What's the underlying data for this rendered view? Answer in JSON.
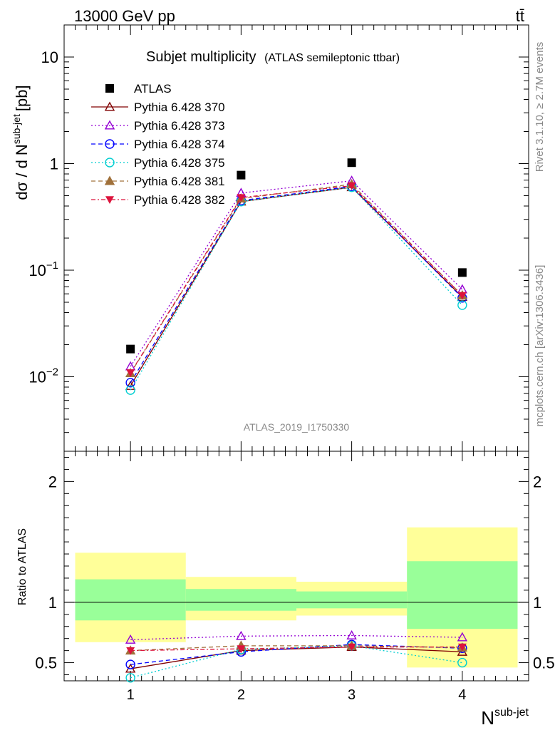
{
  "header": {
    "left": "13000 GeV pp",
    "right": "tt̄"
  },
  "side_labels": {
    "rivet": "Rivet 3.1.10, ≥ 2.7M events",
    "mcplots": "mcplots.cern.ch [arXiv:1306.3436]"
  },
  "chart_data": [
    {
      "type": "line",
      "title": "Subjet multiplicity",
      "subtitle": "(ATLAS semileptonic ttbar)",
      "analysis_tag": "ATLAS_2019_I1750330",
      "ylabel_main": "dσ / d N",
      "ylabel_sup": "sub-jet",
      "ylabel_unit": "[pb]",
      "yscale": "log",
      "ylim": [
        0.002,
        20
      ],
      "xlim": [
        0.4,
        4.6
      ],
      "y_ticks": [
        {
          "value": 10,
          "label": "10"
        },
        {
          "value": 1,
          "label": "1"
        },
        {
          "value": 0.1,
          "base": "10",
          "exp": "−1"
        },
        {
          "value": 0.01,
          "base": "10",
          "exp": "−2"
        }
      ],
      "legend_position": "top-left",
      "x": [
        1,
        2,
        3,
        4
      ],
      "series": [
        {
          "name": "ATLAS",
          "values": [
            0.0182,
            0.78,
            1.02,
            0.095
          ],
          "color": "#000000",
          "marker": "square"
        },
        {
          "name": "Pythia 6.428 370",
          "values": [
            0.0082,
            0.44,
            0.6,
            0.056
          ],
          "color": "#800000",
          "marker": "triangle-open",
          "dash": "solid"
        },
        {
          "name": "Pythia 6.428 373",
          "values": [
            0.0125,
            0.53,
            0.69,
            0.066
          ],
          "color": "#9400d3",
          "marker": "triangle-open",
          "dash": "dotted"
        },
        {
          "name": "Pythia 6.428 374",
          "values": [
            0.0088,
            0.45,
            0.61,
            0.055
          ],
          "color": "#0000ff",
          "marker": "circle-open",
          "dash": "dashed"
        },
        {
          "name": "Pythia 6.428 375",
          "values": [
            0.0075,
            0.44,
            0.6,
            0.047
          ],
          "color": "#00ced1",
          "marker": "circle-open",
          "dash": "dotted"
        },
        {
          "name": "Pythia 6.428 381",
          "values": [
            0.0108,
            0.47,
            0.64,
            0.058
          ],
          "color": "#a0703a",
          "marker": "triangle-filled",
          "dash": "dashed"
        },
        {
          "name": "Pythia 6.428 382",
          "values": [
            0.0109,
            0.48,
            0.62,
            0.058
          ],
          "color": "#dc143c",
          "marker": "triangle-down-filled",
          "dash": "dashdot"
        }
      ]
    },
    {
      "type": "line",
      "ylabel": "Ratio to ATLAS",
      "xlabel": "N",
      "xlabel_sup": "sub-jet",
      "ylim": [
        0.35,
        2.25
      ],
      "xlim": [
        0.4,
        4.6
      ],
      "y_ticks": [
        0.5,
        1,
        2
      ],
      "x_ticks": [
        1,
        2,
        3,
        4
      ],
      "x": [
        1,
        2,
        3,
        4
      ],
      "bands": [
        {
          "x_range": [
            0.5,
            1.5
          ],
          "yellow": [
            0.67,
            1.41
          ],
          "green": [
            0.85,
            1.19
          ]
        },
        {
          "x_range": [
            1.5,
            2.5
          ],
          "yellow": [
            0.85,
            1.21
          ],
          "green": [
            0.93,
            1.11
          ]
        },
        {
          "x_range": [
            2.5,
            3.5
          ],
          "yellow": [
            0.89,
            1.17
          ],
          "green": [
            0.95,
            1.09
          ]
        },
        {
          "x_range": [
            3.5,
            4.5
          ],
          "yellow": [
            0.46,
            1.62
          ],
          "green": [
            0.78,
            1.34
          ]
        }
      ],
      "series": [
        {
          "name": "Pythia 6.428 370",
          "values": [
            0.45,
            0.6,
            0.63,
            0.59
          ]
        },
        {
          "name": "Pythia 6.428 373",
          "values": [
            0.69,
            0.72,
            0.725,
            0.71
          ]
        },
        {
          "name": "Pythia 6.428 374",
          "values": [
            0.485,
            0.59,
            0.65,
            0.62
          ]
        },
        {
          "name": "Pythia 6.428 375",
          "values": [
            0.375,
            0.61,
            0.64,
            0.5
          ]
        },
        {
          "name": "Pythia 6.428 381",
          "values": [
            0.6,
            0.64,
            0.64,
            0.625
          ]
        },
        {
          "name": "Pythia 6.428 382",
          "values": [
            0.6,
            0.615,
            0.63,
            0.63
          ]
        }
      ]
    }
  ]
}
